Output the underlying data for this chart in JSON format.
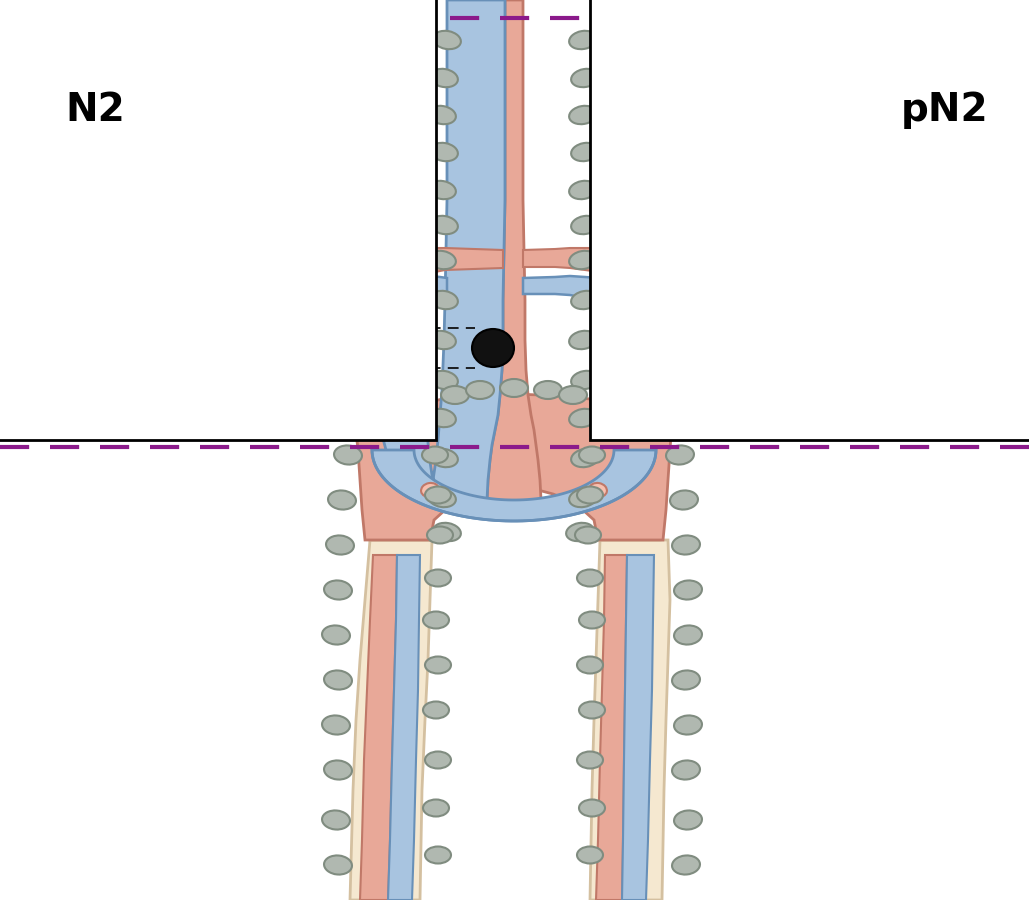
{
  "background_color": "#ffffff",
  "dashed_line_color": "#8b1a8b",
  "label_N2": "N2",
  "label_pN2": "pN2",
  "aorta_color": "#e8a898",
  "aorta_edge": "#c07868",
  "vena_color": "#a8c4e0",
  "vena_edge": "#6890b8",
  "vessel_wall_color": "#f5e8d0",
  "vessel_wall_edge": "#d4c0a0",
  "kidney_color": "#f0c0c0",
  "kidney_edge": "#c09090",
  "kidney_inner": "#fce8e8",
  "fat_color": "#f0d090",
  "fat_edge": "#c8a858",
  "node_color": "#b0b8b0",
  "node_edge": "#808c80",
  "met_color": "#111111",
  "met_edge": "#000000",
  "pelvis_color": "#e8a898",
  "pelvis_edge": "#c07868"
}
